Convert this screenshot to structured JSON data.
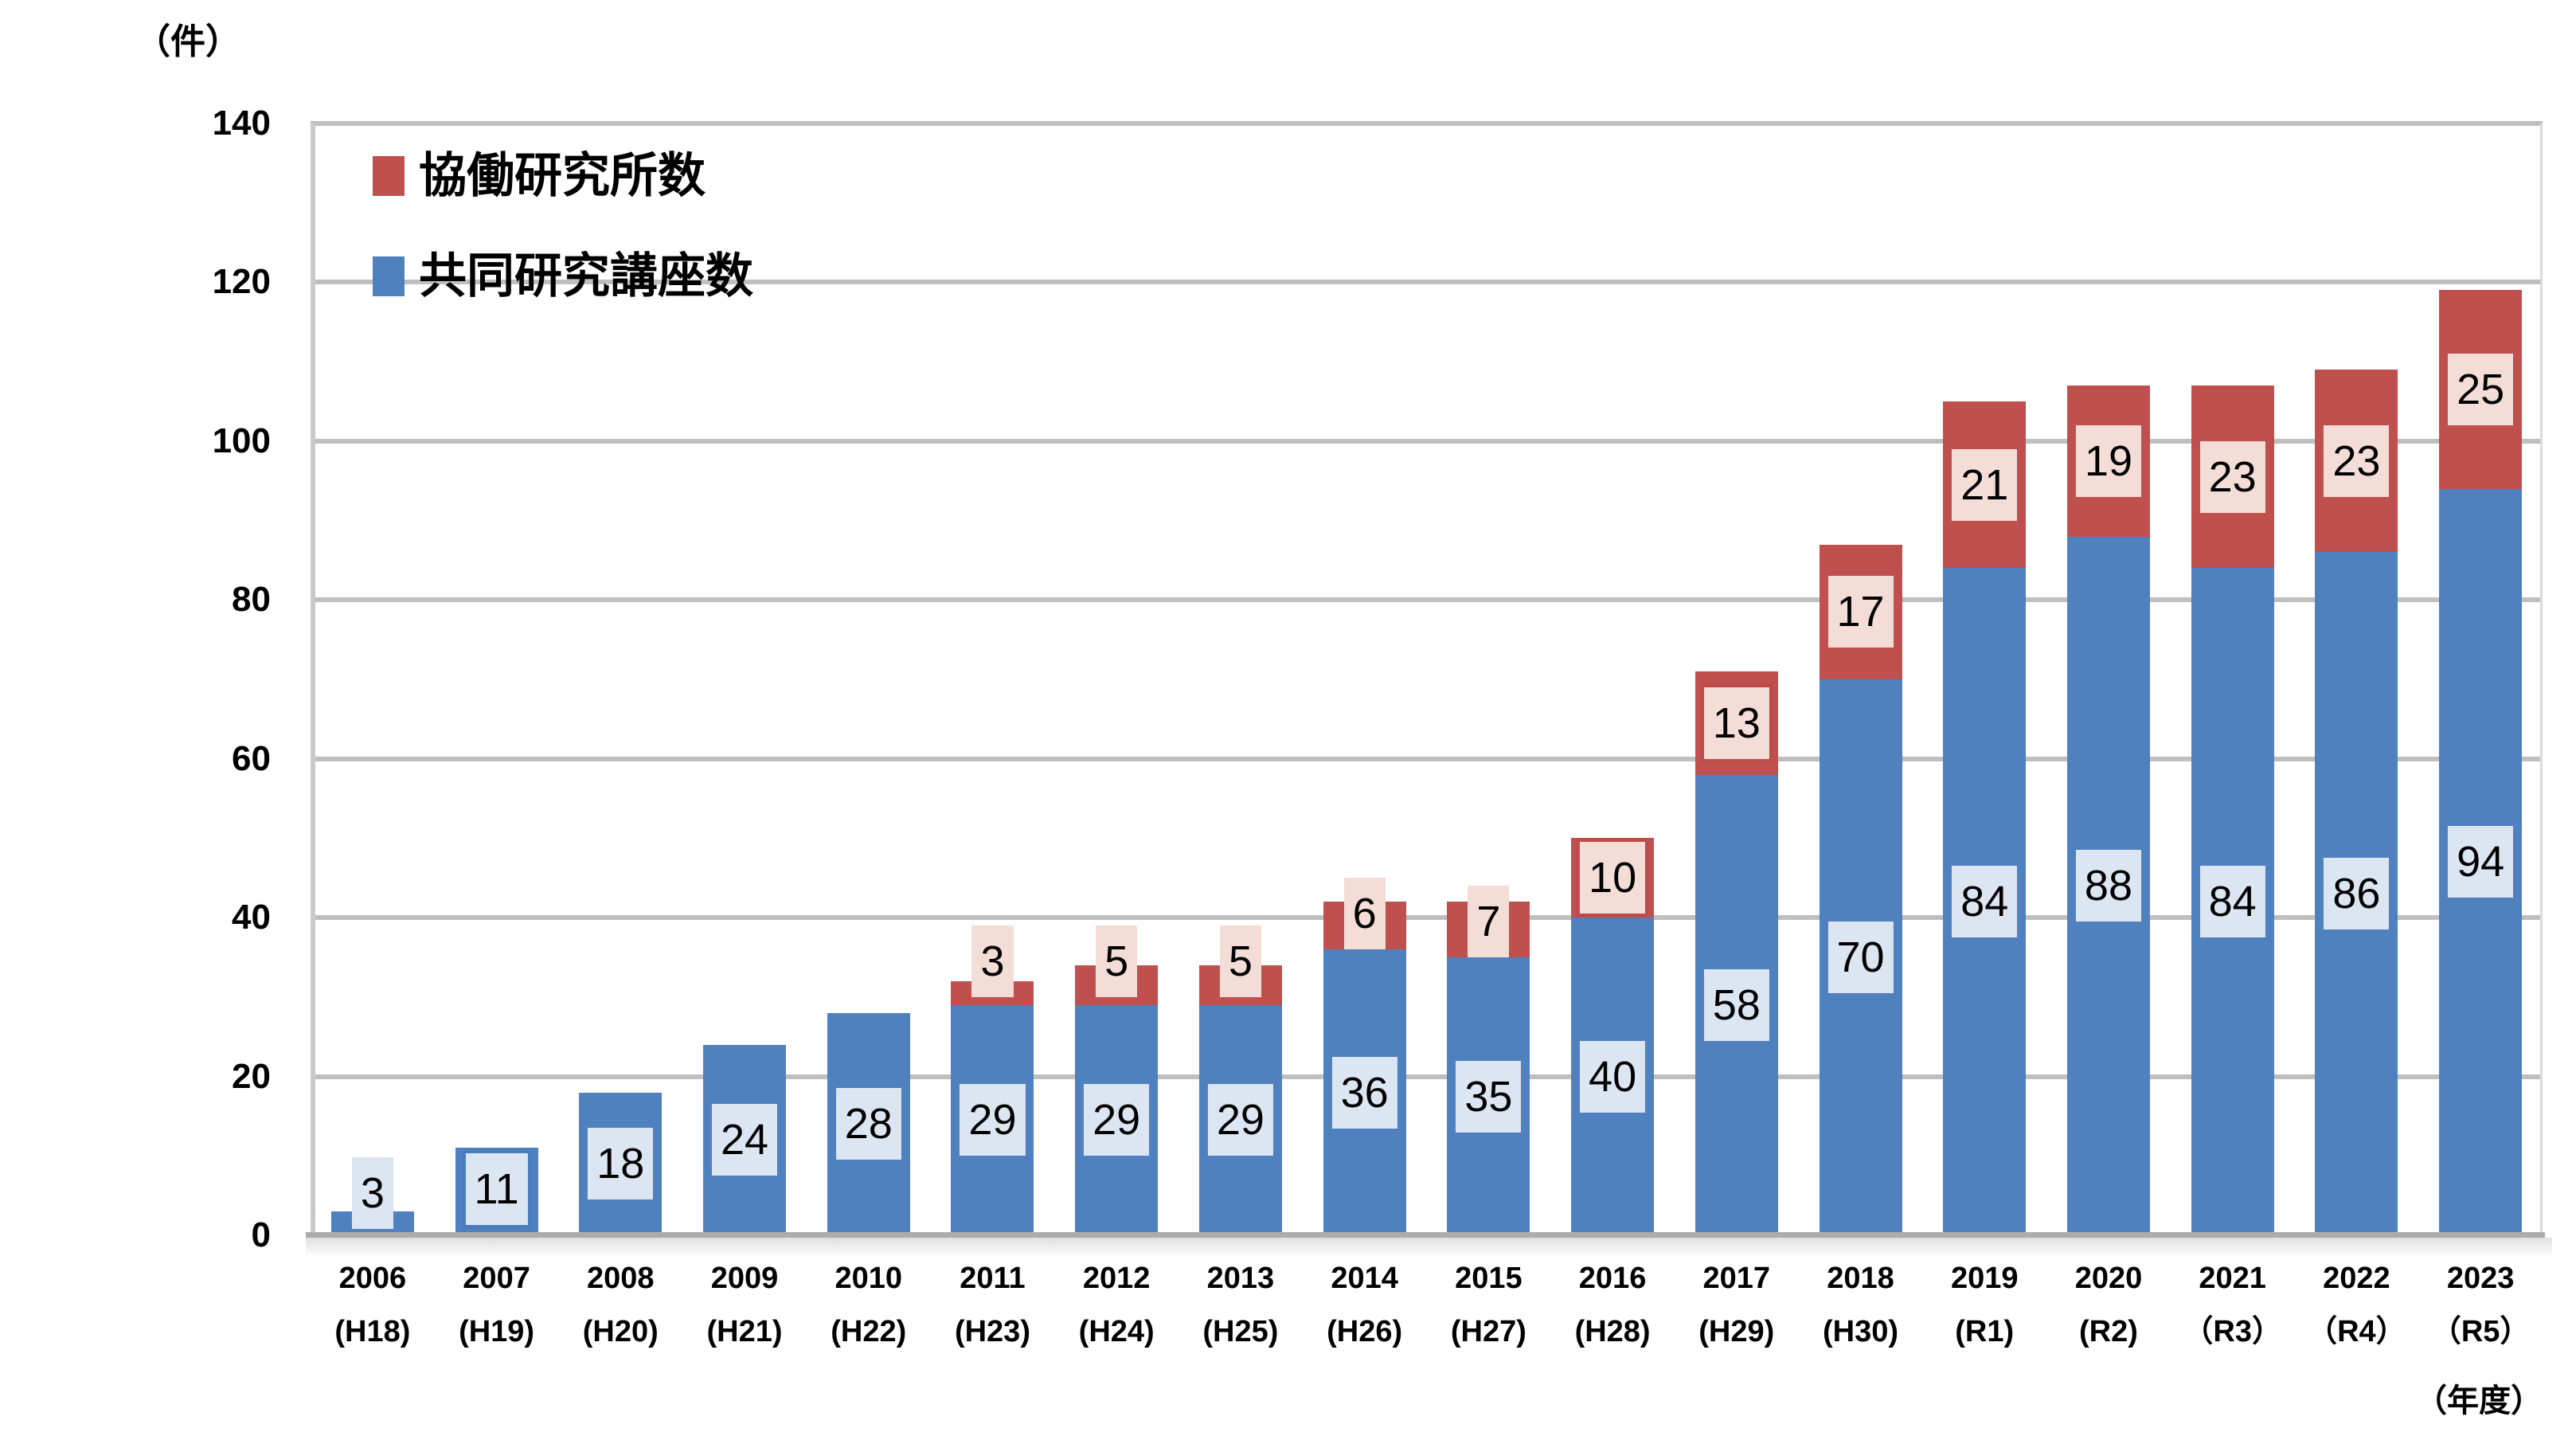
{
  "y_axis": {
    "unit": "（件）",
    "ticks": [
      0,
      20,
      40,
      60,
      80,
      100,
      120,
      140
    ],
    "max": 140
  },
  "x_axis": {
    "unit": "（年度）"
  },
  "legend": {
    "items": [
      {
        "label": "協働研究所数",
        "color": "#C0504D"
      },
      {
        "label": "共同研究講座数",
        "color": "#4E81BD"
      }
    ]
  },
  "colors": {
    "blue_bar": "#4E81BD",
    "red_bar": "#C0504D",
    "blue_label_bg": "#DCE6F2",
    "pink_label_bg": "#F4DDD6",
    "blue_label_border": "#4A7EBB",
    "red_label_border": "#BE4B48",
    "gridline": "#BFBFBF"
  },
  "chart_data": {
    "type": "bar",
    "stacked": true,
    "grid": "horizontal",
    "legend_position": "top-left-inside",
    "ylim": [
      0,
      140
    ],
    "categories": [
      "2006",
      "2007",
      "2008",
      "2009",
      "2010",
      "2011",
      "2012",
      "2013",
      "2014",
      "2015",
      "2016",
      "2017",
      "2018",
      "2019",
      "2020",
      "2021",
      "2022",
      "2023"
    ],
    "era_labels": [
      "(H18)",
      "(H19)",
      "(H20)",
      "(H21)",
      "(H22)",
      "(H23)",
      "(H24)",
      "(H25)",
      "(H26)",
      "(H27)",
      "(H28)",
      "(H29)",
      "(H30)",
      "(R1)",
      "(R2)",
      "（R3）",
      "（R4）",
      "（R5）"
    ],
    "series": [
      {
        "name": "共同研究講座数",
        "color": "#4E81BD",
        "label_style": "blue",
        "values": [
          3,
          11,
          18,
          24,
          28,
          29,
          29,
          29,
          36,
          35,
          40,
          58,
          70,
          84,
          88,
          84,
          86,
          94
        ],
        "bordered_label_indexes": [
          1
        ]
      },
      {
        "name": "協働研究所数",
        "color": "#C0504D",
        "label_style": "pink",
        "values": [
          0,
          0,
          0,
          0,
          0,
          3,
          5,
          5,
          6,
          7,
          10,
          13,
          17,
          21,
          19,
          23,
          23,
          25
        ],
        "bordered_label_indexes": [
          10,
          11
        ]
      }
    ]
  }
}
